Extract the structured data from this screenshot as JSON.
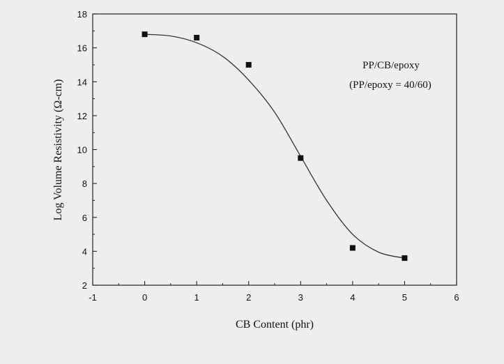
{
  "chart_data": {
    "type": "scatter",
    "xlabel": "CB Content  (phr)",
    "ylabel": "Log Volume Resistivity  (Ω-cm)",
    "xlim": [
      -1,
      6
    ],
    "ylim": [
      2,
      18
    ],
    "xticks": [
      -1,
      0,
      1,
      2,
      3,
      4,
      5,
      6
    ],
    "yticks": [
      2,
      4,
      6,
      8,
      10,
      12,
      14,
      16,
      18
    ],
    "grid": false,
    "series": [
      {
        "marker": "square",
        "color": "#111111",
        "x": [
          0,
          1,
          2,
          3,
          4,
          5
        ],
        "y": [
          16.8,
          16.6,
          15.0,
          9.5,
          4.2,
          3.6
        ]
      }
    ],
    "fit_curve": {
      "x": [
        0,
        0.5,
        1,
        1.5,
        2,
        2.5,
        3,
        3.5,
        4,
        4.5,
        5
      ],
      "y": [
        16.8,
        16.7,
        16.3,
        15.5,
        14.1,
        12.2,
        9.6,
        7.0,
        5.0,
        3.95,
        3.6
      ]
    },
    "annotations": [
      "PP/CB/epoxy",
      "(PP/epoxy = 40/60)"
    ]
  }
}
